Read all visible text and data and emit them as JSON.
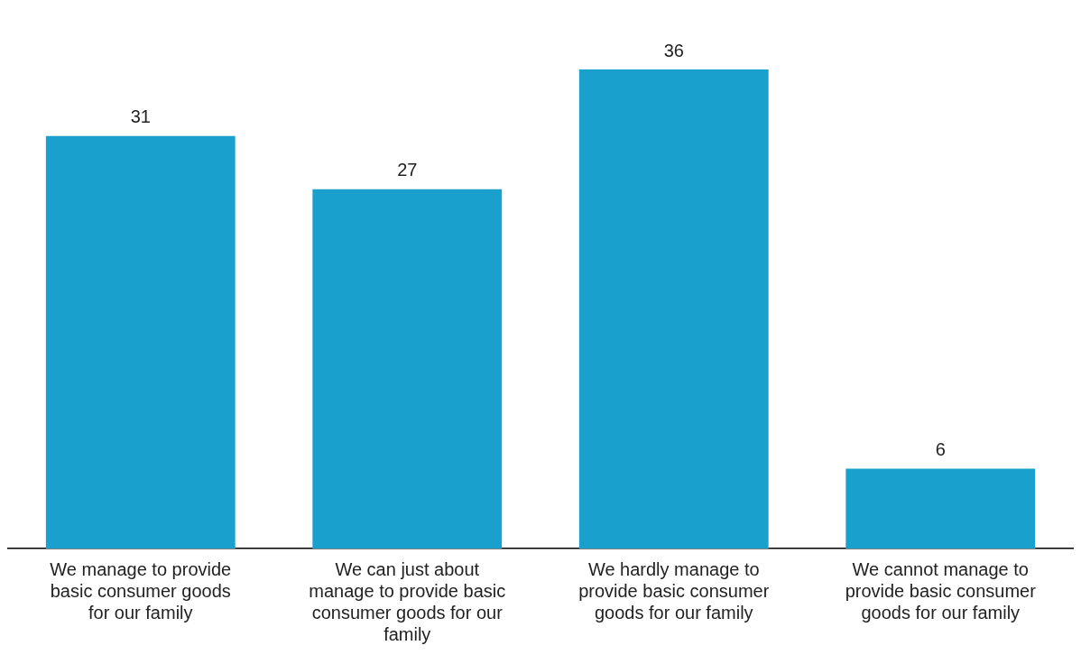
{
  "chart_data": {
    "type": "bar",
    "categories": [
      "We manage to provide basic consumer goods for our family",
      "We can just about manage to provide basic consumer goods for our family",
      "We hardly manage to provide basic consumer goods for our family",
      "We cannot manage to provide basic consumer goods for our family"
    ],
    "values": [
      31,
      27,
      36,
      6
    ],
    "color": "#1aa0cc",
    "data_labels": true,
    "grid": false,
    "legend": false
  }
}
